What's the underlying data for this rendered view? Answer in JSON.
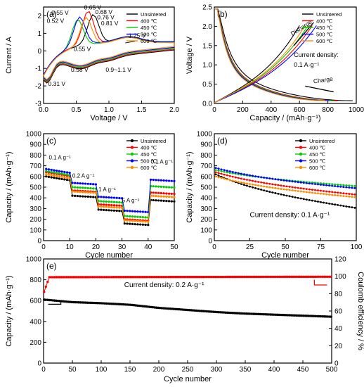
{
  "colors": {
    "Unsintered": "#000000",
    "400": "#ff0000",
    "450": "#00cc00",
    "500": "#0000ff",
    "600": "#ff8c00"
  },
  "chart_data": [
    {
      "panel": "(a)",
      "type": "line",
      "xlabel": "Voltage / V",
      "ylabel": "Current / A",
      "xlim": [
        0,
        2.0
      ],
      "ylim": [
        -3,
        2.5
      ],
      "xticks": [
        0.0,
        0.5,
        1.0,
        1.5,
        2.0
      ],
      "yticks": [
        -3,
        -2,
        -1,
        0,
        1,
        2
      ],
      "legend": [
        "Unsintered",
        "400 ℃",
        "450 ℃",
        "500 ℃",
        "600 ℃"
      ],
      "legend_position": "top-right",
      "annotations": [
        "0.55 V",
        "0.52 V",
        "0.65 V",
        "0.68 V",
        "0.76 V",
        "0.81 V",
        "1.25 V",
        "0.55 V",
        "0.31 V",
        "0.58 V",
        "0.9~1.1 V"
      ],
      "peaks": [
        0.52,
        0.55,
        0.65,
        0.68,
        0.76
      ]
    },
    {
      "panel": "(b)",
      "type": "line",
      "xlabel": "Capacity / (mAh·g⁻¹)",
      "ylabel": "Voltage / V",
      "xlim": [
        0,
        1000
      ],
      "ylim": [
        0,
        2.5
      ],
      "xticks": [
        0,
        200,
        400,
        600,
        800,
        1000
      ],
      "yticks": [
        0.0,
        0.5,
        1.0,
        1.5,
        2.0,
        2.5
      ],
      "legend": [
        "Unsintered",
        "400 ℃",
        "450 ℃",
        "500 ℃",
        "600 ℃"
      ],
      "legend_position": "top-right",
      "annotations": [
        "Disharge",
        "Charge",
        "Current density:",
        "0.1 A·g⁻¹"
      ],
      "discharge_capacity": [
        975,
        870,
        840,
        810,
        780
      ],
      "charge_capacity": [
        600,
        690,
        660,
        720,
        640
      ]
    },
    {
      "panel": "(c)",
      "type": "line",
      "xlabel": "Cycle number",
      "ylabel": "Capacity / (mAh·g⁻¹)",
      "xlim": [
        0,
        50
      ],
      "ylim": [
        0,
        1000
      ],
      "xticks": [
        0,
        10,
        20,
        30,
        40,
        50
      ],
      "yticks": [
        0,
        100,
        200,
        300,
        400,
        500,
        600,
        700,
        800,
        900,
        1000
      ],
      "legend": [
        "Unsintered",
        "400 ℃",
        "450 ℃",
        "500 ℃",
        "600 ℃"
      ],
      "legend_position": "top-right",
      "annotations": [
        "0.1 A g⁻¹",
        "0.2 A g⁻¹",
        "1 A g⁻¹",
        "5 A g⁻¹",
        "0.1 A g⁻¹"
      ],
      "series": [
        {
          "name": "Unsintered",
          "steps": [
            600,
            420,
            290,
            160,
            380
          ]
        },
        {
          "name": "400 ℃",
          "steps": [
            640,
            470,
            340,
            200,
            450
          ]
        },
        {
          "name": "450 ℃",
          "steps": [
            650,
            500,
            370,
            230,
            510
          ]
        },
        {
          "name": "500 ℃",
          "steps": [
            670,
            540,
            410,
            280,
            570
          ]
        },
        {
          "name": "600 ℃",
          "steps": [
            620,
            460,
            320,
            190,
            420
          ]
        }
      ]
    },
    {
      "panel": "(d)",
      "type": "line",
      "xlabel": "Cycle number",
      "ylabel": "Capacity / (mAh·g⁻¹)",
      "xlim": [
        0,
        100
      ],
      "ylim": [
        0,
        1000
      ],
      "xticks": [
        0,
        25,
        50,
        75,
        100
      ],
      "yticks": [
        0,
        100,
        200,
        300,
        400,
        500,
        600,
        700,
        800,
        900,
        1000
      ],
      "legend": [
        "Unsintered",
        "400 ℃",
        "450 ℃",
        "500 ℃",
        "600 ℃"
      ],
      "legend_position": "top-right",
      "annotations": [
        "Current density: 0.1 A·g⁻¹"
      ],
      "series": [
        {
          "name": "Unsintered",
          "start": 620,
          "end": 305
        },
        {
          "name": "400 ℃",
          "start": 640,
          "end": 430
        },
        {
          "name": "450 ℃",
          "start": 660,
          "end": 510
        },
        {
          "name": "500 ℃",
          "start": 680,
          "end": 490
        },
        {
          "name": "600 ℃",
          "start": 600,
          "end": 405
        }
      ]
    },
    {
      "panel": "(e)",
      "type": "line",
      "xlabel": "Cycle number",
      "ylabel": "Capacity / (mAh·g⁻¹)",
      "y2label": "Coulomb efficiency / %",
      "xlim": [
        0,
        500
      ],
      "ylim": [
        0,
        1000
      ],
      "y2lim": [
        0,
        120
      ],
      "xticks": [
        0,
        50,
        100,
        150,
        200,
        250,
        300,
        350,
        400,
        450,
        500
      ],
      "yticks": [
        0,
        200,
        400,
        600,
        800,
        1000
      ],
      "y2ticks": [
        0,
        20,
        40,
        60,
        80,
        100,
        120
      ],
      "annotations": [
        "Current density: 0.2 A·g⁻¹"
      ],
      "capacity": {
        "x": [
          0,
          50,
          100,
          150,
          200,
          250,
          300,
          350,
          400,
          450,
          500
        ],
        "y": [
          610,
          585,
          575,
          560,
          530,
          510,
          490,
          475,
          465,
          455,
          445
        ]
      },
      "efficiency": {
        "x": [
          0,
          5,
          10,
          500
        ],
        "y": [
          80,
          90,
          99,
          99.5
        ]
      }
    }
  ]
}
